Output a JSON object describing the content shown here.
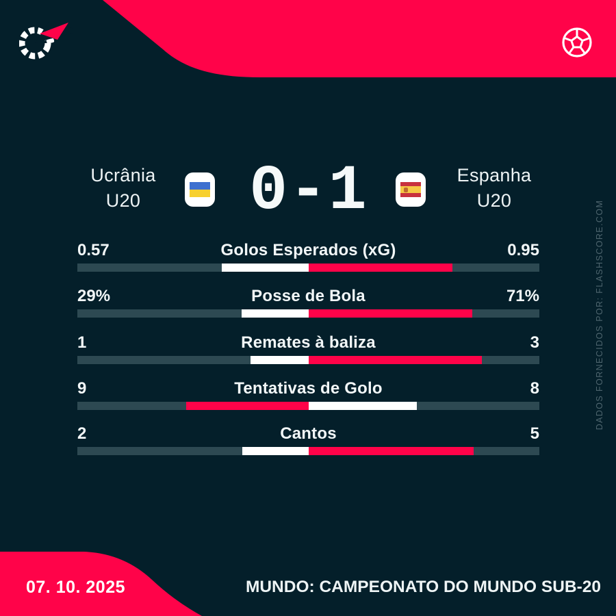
{
  "match": {
    "home": {
      "name": "Ucrânia",
      "category": "U20",
      "flag": "ukraine-flag"
    },
    "away": {
      "name": "Espanha",
      "category": "U20",
      "flag": "spain-flag"
    },
    "score": {
      "home": "0",
      "separator": "-",
      "away": "1"
    }
  },
  "stats": {
    "rows": [
      {
        "home": "0.57",
        "label": "Golos Esperados (xG)",
        "away": "0.95"
      },
      {
        "home": "29%",
        "label": "Posse de Bola",
        "away": "71%"
      },
      {
        "home": "1",
        "label": "Remates à baliza",
        "away": "3"
      },
      {
        "home": "9",
        "label": "Tentativas de Golo",
        "away": "8"
      },
      {
        "home": "2",
        "label": "Cantos",
        "away": "5"
      }
    ]
  },
  "footer": {
    "date": "07. 10. 2025",
    "competition": "MUNDO: CAMPEONATO DO MUNDO SUB-20"
  },
  "watermark": "DADOS FORNECIDOS POR: FLASHSCORE.COM",
  "icons": {
    "top_left": "flashscore-logo",
    "top_right": "soccer-ball-icon"
  },
  "colors": {
    "background": "#041f2a",
    "accent_red": "#ff0349",
    "bar_track": "#2d4952",
    "bar_white": "#ffffff",
    "muted_text": "#4e656e",
    "ukraine_blue": "#3e70cf",
    "ukraine_yellow": "#f7d02e",
    "spain_red": "#c8313e",
    "spain_yellow": "#f6c845"
  },
  "chart_data": {
    "type": "bar",
    "orientation": "horizontal-paired-from-center",
    "title": "Ucrânia U20 0-1 Espanha U20",
    "categories": [
      "Golos Esperados (xG)",
      "Posse de Bola",
      "Remates à baliza",
      "Tentativas de Golo",
      "Cantos"
    ],
    "series": [
      {
        "name": "Ucrânia U20",
        "values": [
          0.57,
          29,
          1,
          9,
          2
        ],
        "labels": [
          "0.57",
          "29%",
          "1",
          "9",
          "2"
        ]
      },
      {
        "name": "Espanha U20",
        "values": [
          0.95,
          71,
          3,
          8,
          5
        ],
        "labels": [
          "0.95",
          "71%",
          "3",
          "8",
          "5"
        ]
      }
    ],
    "bar_rule": "each side length = value / (home+away) of half track width; leading side colored red, trailing side white",
    "legend_position": "none",
    "grid": false
  }
}
